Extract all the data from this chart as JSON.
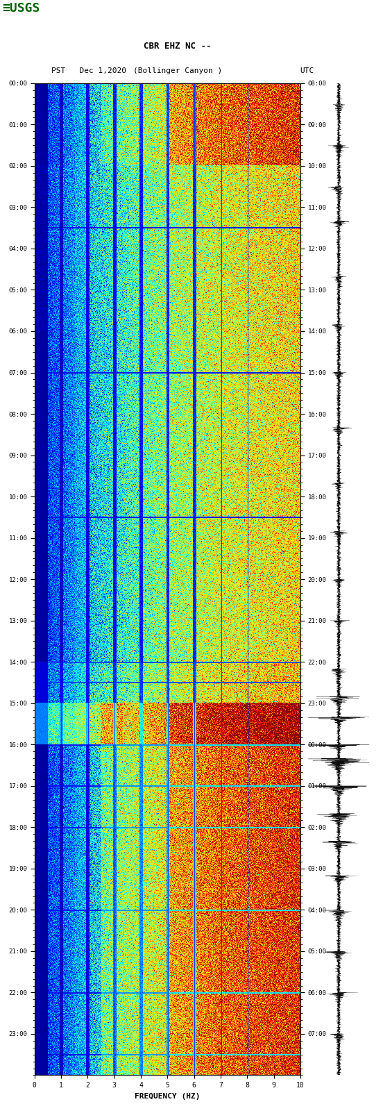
{
  "title_line1": "CBR EHZ NC --",
  "title_line2_left": "PST   Dec 1,2020",
  "title_line2_center": "(Bollinger Canyon )",
  "title_line2_right": "UTC",
  "freq_label": "FREQUENCY (HZ)",
  "freq_min": 0,
  "freq_max": 10,
  "freq_ticks": [
    0,
    1,
    2,
    3,
    4,
    5,
    6,
    7,
    8,
    9,
    10
  ],
  "time_left_labels": [
    "00:00",
    "01:00",
    "02:00",
    "03:00",
    "04:00",
    "05:00",
    "06:00",
    "07:00",
    "08:00",
    "09:00",
    "10:00",
    "11:00",
    "12:00",
    "13:00",
    "14:00",
    "15:00",
    "16:00",
    "17:00",
    "18:00",
    "19:00",
    "20:00",
    "21:00",
    "22:00",
    "23:00"
  ],
  "time_right_labels": [
    "08:00",
    "09:00",
    "10:00",
    "11:00",
    "12:00",
    "13:00",
    "14:00",
    "15:00",
    "16:00",
    "17:00",
    "18:00",
    "19:00",
    "20:00",
    "21:00",
    "22:00",
    "23:00",
    "00:00",
    "01:00",
    "02:00",
    "03:00",
    "04:00",
    "05:00",
    "06:00",
    "07:00"
  ],
  "background_color": "#ffffff",
  "colormap": "jet",
  "fig_width": 5.52,
  "fig_height": 16.13,
  "dpi": 100,
  "usgs_color": "#006400"
}
